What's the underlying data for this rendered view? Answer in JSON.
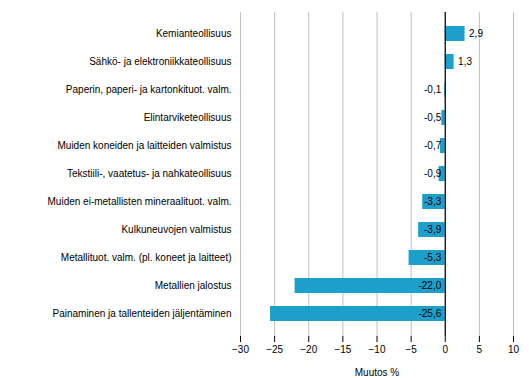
{
  "chart_data": {
    "type": "bar",
    "orientation": "horizontal",
    "categories": [
      "Painaminen ja tallenteiden jäljentäminen",
      "Metallien jalostus",
      "Metallituot. valm. (pl. koneet ja laitteet)",
      "Kulkuneuvojen valmistus",
      "Muiden ei-metallisten mineraalituot. valm.",
      "Tekstiili-, vaatetus- ja nahkateollisuus",
      "Muiden koneiden ja laitteiden valmistus",
      "Elintarviketeollisuus",
      "Paperin, paperi- ja kartonkituot. valm.",
      "Sähkö- ja elektroniikkateollisuus",
      "Kemianteollisuus"
    ],
    "values": [
      -25.6,
      -22.0,
      -5.3,
      -3.9,
      -3.3,
      -0.9,
      -0.7,
      -0.5,
      -0.1,
      1.3,
      2.9
    ],
    "value_labels": [
      "-25,6",
      "-22,0",
      "-5,3",
      "-3,9",
      "-3,3",
      "-0,9",
      "-0,7",
      "-0,5",
      "-0,1",
      "1,3",
      "2,9"
    ],
    "data_labels": true,
    "color": "#1d9fcc",
    "xlabel": "Muutos %",
    "xlim": [
      -30,
      10
    ],
    "xticks": [
      -30,
      -25,
      -20,
      -15,
      -10,
      -5,
      0,
      5,
      10
    ],
    "grid": true
  }
}
